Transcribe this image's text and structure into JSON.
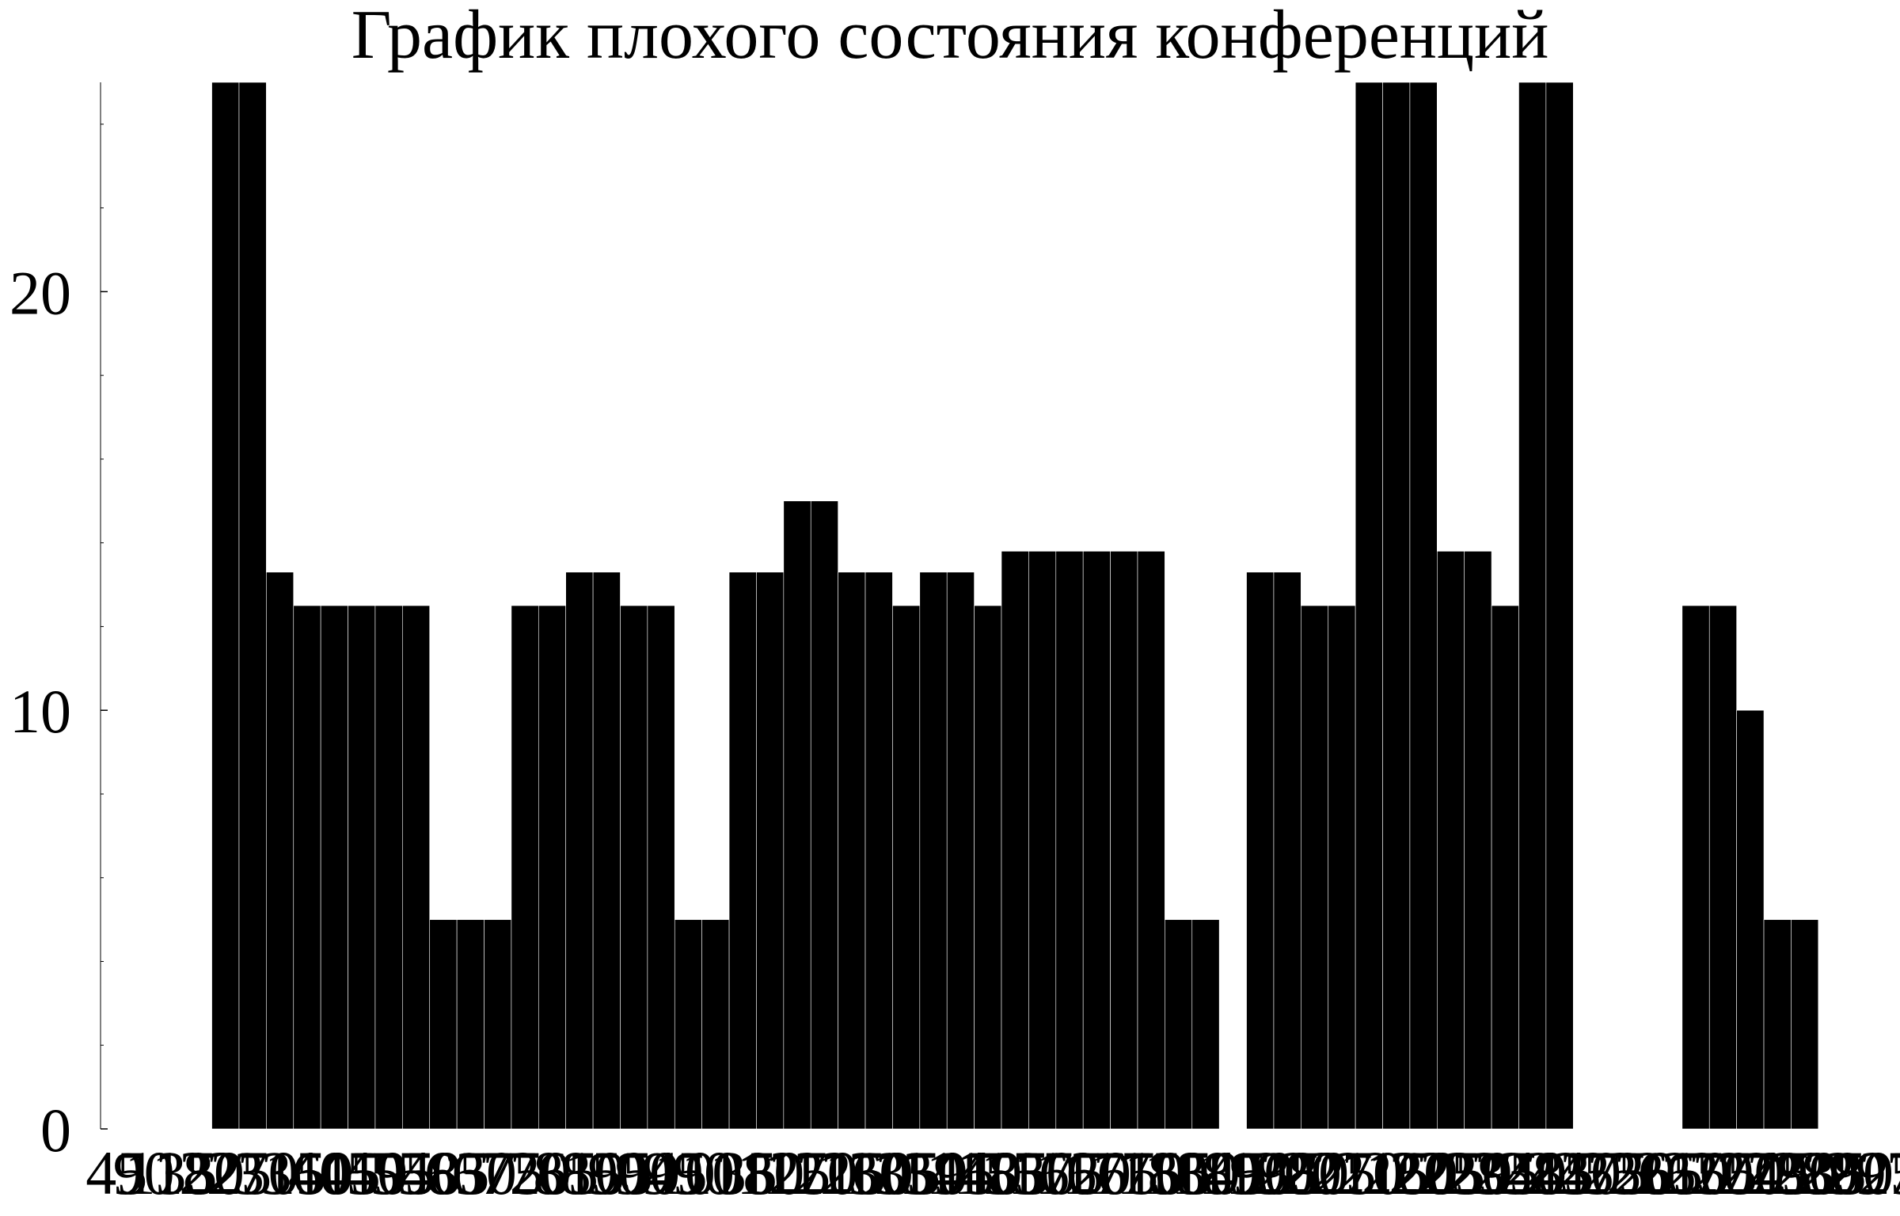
{
  "chart_data": {
    "type": "bar",
    "title": "График плохого состояния конференций",
    "xlabel": "",
    "ylabel": "",
    "ylim": [
      0,
      25
    ],
    "yticks": [
      0,
      10,
      20
    ],
    "grid": false,
    "legend": "none",
    "bar_color": "#000000",
    "categories": [
      "45",
      "90",
      "135",
      "180",
      "225",
      "270",
      "315",
      "360",
      "405",
      "450",
      "495",
      "540",
      "585",
      "630",
      "675",
      "720",
      "765",
      "810",
      "855",
      "900",
      "945",
      "990",
      "1035",
      "1080",
      "1125",
      "1170",
      "1215",
      "1260",
      "1305",
      "1350",
      "1395",
      "1440",
      "1485",
      "1530",
      "1575",
      "1620",
      "1665",
      "1710",
      "1755",
      "1800",
      "1845",
      "1890",
      "1935",
      "1980",
      "2025",
      "2070",
      "2115",
      "2160",
      "2205",
      "2250",
      "2295",
      "2340",
      "2385",
      "2430",
      "2475",
      "2520",
      "2565",
      "2610",
      "2655",
      "2700",
      "2745",
      "2790",
      "2835",
      "2880",
      "2925",
      "2970"
    ],
    "values": [
      0,
      0,
      0,
      0,
      25,
      25,
      13.3,
      12.5,
      12.5,
      12.5,
      12.5,
      12.5,
      5,
      5,
      5,
      12.5,
      12.5,
      13.3,
      13.3,
      12.5,
      12.5,
      5,
      5,
      13.3,
      13.3,
      15,
      15,
      13.3,
      13.3,
      12.5,
      13.3,
      13.3,
      12.5,
      13.8,
      13.8,
      13.8,
      13.8,
      13.8,
      13.8,
      5,
      5,
      0,
      13.3,
      13.3,
      12.5,
      12.5,
      25,
      25,
      25,
      13.8,
      13.8,
      12.5,
      25,
      25,
      0,
      0,
      0,
      0,
      12.5,
      12.5,
      10,
      5,
      5,
      0,
      0,
      0
    ]
  }
}
